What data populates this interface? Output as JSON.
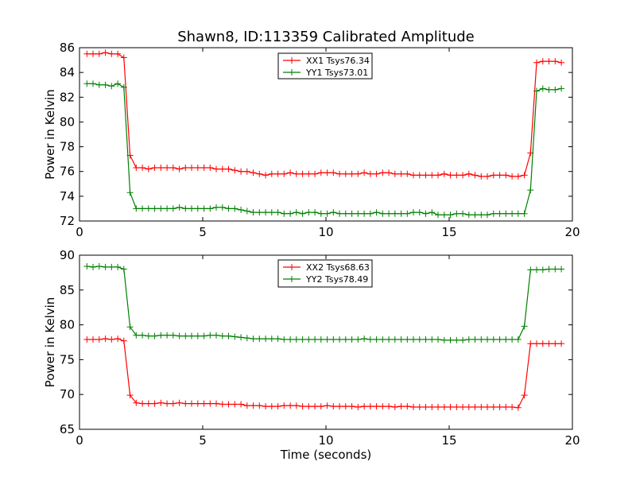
{
  "figure": {
    "title": "Shawn8, ID:113359 Calibrated Amplitude"
  },
  "colors": {
    "series_red": "#ff0000",
    "series_green": "#008000",
    "axes": "#000000",
    "background": "#ffffff"
  },
  "chart_data": [
    {
      "type": "line",
      "title": "Shawn8, ID:113359 Calibrated Amplitude",
      "xlabel": "",
      "ylabel": "Power in Kelvin",
      "xlim": [
        0,
        20
      ],
      "ylim": [
        72,
        86
      ],
      "xticks": [
        0,
        5,
        10,
        15,
        20
      ],
      "yticks": [
        72,
        74,
        76,
        78,
        80,
        82,
        84,
        86
      ],
      "xtick_labels": [
        "0",
        "5",
        "10",
        "15",
        "20"
      ],
      "ytick_labels": [
        "72",
        "74",
        "76",
        "78",
        "80",
        "82",
        "84",
        "86"
      ],
      "grid": false,
      "legend": "top-center",
      "marker": "+",
      "x": [
        0.3,
        0.55,
        0.8,
        1.05,
        1.3,
        1.55,
        1.8,
        2.05,
        2.3,
        2.55,
        2.8,
        3.05,
        3.3,
        3.55,
        3.8,
        4.05,
        4.3,
        4.55,
        4.8,
        5.05,
        5.3,
        5.55,
        5.8,
        6.05,
        6.3,
        6.55,
        6.8,
        7.05,
        7.3,
        7.55,
        7.8,
        8.05,
        8.3,
        8.55,
        8.8,
        9.05,
        9.3,
        9.55,
        9.8,
        10.05,
        10.3,
        10.55,
        10.8,
        11.05,
        11.3,
        11.55,
        11.8,
        12.05,
        12.3,
        12.55,
        12.8,
        13.05,
        13.3,
        13.55,
        13.8,
        14.05,
        14.3,
        14.55,
        14.8,
        15.05,
        15.3,
        15.55,
        15.8,
        16.05,
        16.3,
        16.55,
        16.8,
        17.05,
        17.3,
        17.55,
        17.8,
        18.05,
        18.3,
        18.55,
        18.8,
        19.05,
        19.3,
        19.55
      ],
      "series": [
        {
          "name": "XX1 Tsys76.34",
          "color": "#ff0000",
          "values": [
            85.5,
            85.5,
            85.5,
            85.6,
            85.5,
            85.5,
            85.2,
            77.3,
            76.3,
            76.3,
            76.2,
            76.3,
            76.3,
            76.3,
            76.3,
            76.2,
            76.3,
            76.3,
            76.3,
            76.3,
            76.3,
            76.2,
            76.2,
            76.2,
            76.1,
            76.0,
            76.0,
            75.9,
            75.8,
            75.7,
            75.8,
            75.8,
            75.8,
            75.9,
            75.8,
            75.8,
            75.8,
            75.8,
            75.9,
            75.9,
            75.9,
            75.8,
            75.8,
            75.8,
            75.8,
            75.9,
            75.8,
            75.8,
            75.9,
            75.9,
            75.8,
            75.8,
            75.8,
            75.7,
            75.7,
            75.7,
            75.7,
            75.7,
            75.8,
            75.7,
            75.7,
            75.7,
            75.8,
            75.7,
            75.6,
            75.6,
            75.7,
            75.7,
            75.7,
            75.6,
            75.6,
            75.7,
            77.5,
            84.8,
            84.9,
            84.9,
            84.9,
            84.8
          ]
        },
        {
          "name": "YY1 Tsys73.01",
          "color": "#008000",
          "values": [
            83.1,
            83.1,
            83.0,
            83.0,
            82.9,
            83.1,
            82.8,
            74.3,
            73.0,
            73.0,
            73.0,
            73.0,
            73.0,
            73.0,
            73.0,
            73.1,
            73.0,
            73.0,
            73.0,
            73.0,
            73.0,
            73.1,
            73.1,
            73.0,
            73.0,
            72.9,
            72.8,
            72.7,
            72.7,
            72.7,
            72.7,
            72.7,
            72.6,
            72.6,
            72.7,
            72.6,
            72.7,
            72.7,
            72.6,
            72.6,
            72.7,
            72.6,
            72.6,
            72.6,
            72.6,
            72.6,
            72.6,
            72.7,
            72.6,
            72.6,
            72.6,
            72.6,
            72.6,
            72.7,
            72.7,
            72.6,
            72.7,
            72.5,
            72.5,
            72.5,
            72.6,
            72.6,
            72.5,
            72.5,
            72.5,
            72.5,
            72.6,
            72.6,
            72.6,
            72.6,
            72.6,
            72.6,
            74.5,
            82.5,
            82.7,
            82.6,
            82.6,
            82.7
          ]
        }
      ]
    },
    {
      "type": "line",
      "title": "",
      "xlabel": "Time (seconds)",
      "ylabel": "Power in Kelvin",
      "xlim": [
        0,
        20
      ],
      "ylim": [
        65,
        90
      ],
      "xticks": [
        0,
        5,
        10,
        15,
        20
      ],
      "yticks": [
        65,
        70,
        75,
        80,
        85,
        90
      ],
      "xtick_labels": [
        "0",
        "5",
        "10",
        "15",
        "20"
      ],
      "ytick_labels": [
        "65",
        "70",
        "75",
        "80",
        "85",
        "90"
      ],
      "grid": false,
      "legend": "top-center",
      "marker": "+",
      "x": [
        0.3,
        0.55,
        0.8,
        1.05,
        1.3,
        1.55,
        1.8,
        2.05,
        2.3,
        2.55,
        2.8,
        3.05,
        3.3,
        3.55,
        3.8,
        4.05,
        4.3,
        4.55,
        4.8,
        5.05,
        5.3,
        5.55,
        5.8,
        6.05,
        6.3,
        6.55,
        6.8,
        7.05,
        7.3,
        7.55,
        7.8,
        8.05,
        8.3,
        8.55,
        8.8,
        9.05,
        9.3,
        9.55,
        9.8,
        10.05,
        10.3,
        10.55,
        10.8,
        11.05,
        11.3,
        11.55,
        11.8,
        12.05,
        12.3,
        12.55,
        12.8,
        13.05,
        13.3,
        13.55,
        13.8,
        14.05,
        14.3,
        14.55,
        14.8,
        15.05,
        15.3,
        15.55,
        15.8,
        16.05,
        16.3,
        16.55,
        16.8,
        17.05,
        17.3,
        17.55,
        17.8,
        18.05,
        18.3,
        18.55,
        18.8,
        19.05,
        19.3,
        19.55
      ],
      "series": [
        {
          "name": "XX2 Tsys68.63",
          "color": "#ff0000",
          "values": [
            77.9,
            77.9,
            77.9,
            78.0,
            77.9,
            78.0,
            77.7,
            69.9,
            68.8,
            68.7,
            68.7,
            68.7,
            68.8,
            68.7,
            68.7,
            68.8,
            68.7,
            68.7,
            68.7,
            68.7,
            68.7,
            68.7,
            68.6,
            68.6,
            68.6,
            68.6,
            68.4,
            68.4,
            68.4,
            68.3,
            68.3,
            68.3,
            68.4,
            68.4,
            68.4,
            68.3,
            68.3,
            68.3,
            68.3,
            68.4,
            68.3,
            68.3,
            68.3,
            68.3,
            68.2,
            68.3,
            68.3,
            68.3,
            68.3,
            68.3,
            68.2,
            68.3,
            68.3,
            68.2,
            68.2,
            68.2,
            68.2,
            68.2,
            68.2,
            68.2,
            68.2,
            68.2,
            68.2,
            68.2,
            68.2,
            68.2,
            68.2,
            68.2,
            68.2,
            68.2,
            68.1,
            69.9,
            77.3,
            77.3,
            77.3,
            77.3,
            77.3,
            77.3
          ]
        },
        {
          "name": "YY2 Tsys78.49",
          "color": "#008000",
          "values": [
            88.4,
            88.3,
            88.4,
            88.3,
            88.3,
            88.3,
            88.0,
            79.7,
            78.5,
            78.5,
            78.4,
            78.4,
            78.5,
            78.5,
            78.5,
            78.4,
            78.4,
            78.4,
            78.4,
            78.4,
            78.5,
            78.5,
            78.4,
            78.4,
            78.3,
            78.2,
            78.1,
            78.0,
            78.0,
            78.0,
            78.0,
            78.0,
            77.9,
            77.9,
            77.9,
            77.9,
            77.9,
            77.9,
            77.9,
            77.9,
            77.9,
            77.9,
            77.9,
            77.9,
            77.9,
            78.0,
            77.9,
            77.9,
            77.9,
            77.9,
            77.9,
            77.9,
            77.9,
            77.9,
            77.9,
            77.9,
            77.9,
            77.9,
            77.8,
            77.8,
            77.8,
            77.8,
            77.9,
            77.9,
            77.9,
            77.9,
            77.9,
            77.9,
            77.9,
            77.9,
            77.9,
            79.8,
            87.9,
            87.9,
            87.9,
            88.0,
            88.0,
            88.0
          ]
        }
      ]
    }
  ]
}
